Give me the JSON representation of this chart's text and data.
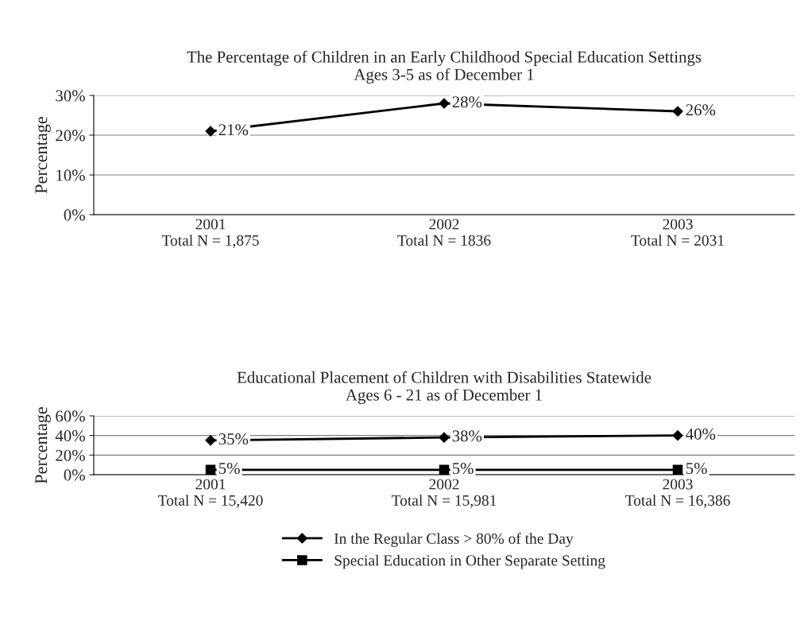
{
  "chart_data": [
    {
      "type": "line",
      "title": "The Percentage of Children in an Early Childhood Special Education Settings\nAges 3-5 as of December 1",
      "ylabel": "Percentage",
      "categories": [
        "2001\nTotal N = 1,875",
        "2002\nTotal N = 1836",
        "2003\nTotal N = 2031"
      ],
      "series": [
        {
          "color": "#000000",
          "marker": "diamond",
          "values": [
            21,
            28,
            26
          ],
          "value_labels": [
            "21%",
            "28%",
            "26%"
          ]
        }
      ],
      "ylim": [
        0,
        30
      ],
      "yticks": [
        {
          "value": 0,
          "label": "0%"
        },
        {
          "value": 10,
          "label": "10%"
        },
        {
          "value": 20,
          "label": "20%"
        },
        {
          "value": 30,
          "label": "30%"
        }
      ],
      "grid": "y"
    },
    {
      "type": "line",
      "title": "Educational Placement of Children with Disabilities Statewide\nAges 6 - 21 as of December 1",
      "ylabel": "Percentage",
      "categories": [
        "2001\nTotal N = 15,420",
        "2002\nTotal N = 15,981",
        "2003\nTotal N = 16,386"
      ],
      "series": [
        {
          "name": "In the Regular Class > 80% of the Day",
          "color": "#000000",
          "marker": "diamond",
          "values": [
            35,
            38,
            40
          ],
          "value_labels": [
            "35%",
            "38%",
            "40%"
          ]
        },
        {
          "name": "Special Education in Other Separate Setting",
          "color": "#000000",
          "marker": "square",
          "values": [
            5,
            5,
            5
          ],
          "value_labels": [
            "5%",
            "5%",
            "5%"
          ]
        }
      ],
      "ylim": [
        0,
        60
      ],
      "yticks": [
        {
          "value": 0,
          "label": "0%"
        },
        {
          "value": 20,
          "label": "20%"
        },
        {
          "value": 40,
          "label": "40%"
        },
        {
          "value": 60,
          "label": "60%"
        }
      ],
      "grid": "y",
      "legend": "bottom"
    }
  ]
}
